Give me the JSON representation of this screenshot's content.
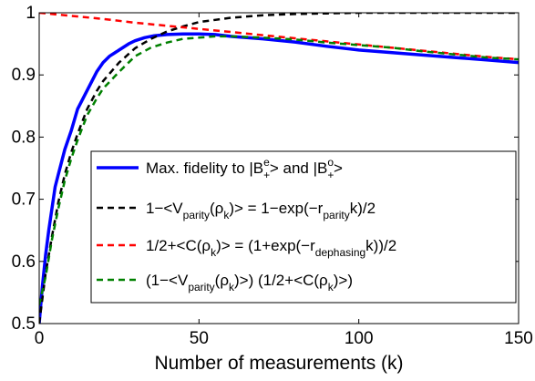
{
  "chart_data": {
    "type": "line",
    "xlabel": "Number of measurements (k)",
    "ylabel": "",
    "xlim": [
      0,
      150
    ],
    "ylim": [
      0.5,
      1
    ],
    "xticks": [
      "0",
      "50",
      "100",
      "150"
    ],
    "yticks": [
      "0.5",
      "0.6",
      "0.7",
      "0.8",
      "0.9",
      "1"
    ],
    "grid": false,
    "legend_position": "lower-right",
    "series": [
      {
        "name": "Max. fidelity to |B+e> and |B+o>",
        "color": "#0000ff",
        "style": "solid",
        "x": [
          0,
          1,
          2,
          3,
          4,
          5,
          6,
          8,
          10,
          12,
          14,
          16,
          18,
          20,
          22,
          25,
          28,
          30,
          33,
          36,
          40,
          45,
          50,
          55,
          60,
          70,
          80,
          90,
          100,
          110,
          120,
          130,
          140,
          150
        ],
        "y": [
          0.5,
          0.56,
          0.61,
          0.65,
          0.685,
          0.72,
          0.74,
          0.78,
          0.81,
          0.845,
          0.865,
          0.885,
          0.905,
          0.92,
          0.93,
          0.94,
          0.95,
          0.955,
          0.96,
          0.963,
          0.965,
          0.966,
          0.966,
          0.965,
          0.962,
          0.958,
          0.953,
          0.946,
          0.94,
          0.936,
          0.932,
          0.928,
          0.924,
          0.92
        ]
      },
      {
        "name": "1−<Vparity(ρk)> = 1−exp(−rparityk)/2",
        "color": "#000000",
        "style": "dashed",
        "x": [
          0,
          2,
          4,
          6,
          8,
          10,
          12,
          15,
          18,
          20,
          25,
          30,
          35,
          40,
          45,
          50,
          60,
          70,
          80,
          90,
          100,
          110,
          120,
          130,
          140,
          150
        ],
        "y": [
          0.5,
          0.58,
          0.64,
          0.695,
          0.74,
          0.775,
          0.805,
          0.845,
          0.874,
          0.89,
          0.92,
          0.943,
          0.958,
          0.97,
          0.978,
          0.985,
          0.992,
          0.996,
          0.998,
          0.999,
          1.0,
          1.0,
          1.0,
          1.0,
          1.0,
          1.0
        ]
      },
      {
        "name": "1/2+<C(ρk)> = (1+exp(−rdephasingk))/2",
        "color": "#ff0000",
        "style": "dashed",
        "x": [
          0,
          10,
          20,
          30,
          40,
          50,
          60,
          70,
          80,
          90,
          100,
          110,
          120,
          130,
          140,
          150
        ],
        "y": [
          1.0,
          0.995,
          0.99,
          0.984,
          0.979,
          0.974,
          0.969,
          0.964,
          0.959,
          0.954,
          0.949,
          0.944,
          0.939,
          0.934,
          0.929,
          0.925
        ]
      },
      {
        "name": "(1−<Vparity(ρk)>) (1/2+<C(ρk)>)",
        "color": "#008000",
        "style": "dashed",
        "x": [
          0,
          2,
          4,
          6,
          8,
          10,
          12,
          15,
          18,
          20,
          25,
          30,
          35,
          40,
          45,
          50,
          55,
          60,
          70,
          80,
          90,
          100,
          110,
          120,
          130,
          140,
          150
        ],
        "y": [
          0.53,
          0.575,
          0.635,
          0.685,
          0.73,
          0.765,
          0.795,
          0.835,
          0.862,
          0.878,
          0.905,
          0.93,
          0.944,
          0.952,
          0.958,
          0.96,
          0.962,
          0.962,
          0.96,
          0.957,
          0.952,
          0.948,
          0.944,
          0.938,
          0.933,
          0.928,
          0.925
        ]
      }
    ],
    "legend": [
      {
        "parts": [
          [
            "Max. fidelity to |B",
            ""
          ],
          [
            "+",
            "sub"
          ],
          [
            "e",
            "sup"
          ],
          [
            "> and |B",
            ""
          ],
          [
            "+",
            "sub"
          ],
          [
            "o",
            "sup"
          ],
          [
            ">",
            ""
          ]
        ]
      },
      {
        "parts": [
          [
            "1−<V",
            ""
          ],
          [
            "parity",
            "sub"
          ],
          [
            "(ρ",
            ""
          ],
          [
            "k",
            "sub"
          ],
          [
            ")> = 1−exp(−r",
            ""
          ],
          [
            "parity",
            "sub"
          ],
          [
            "k)/2",
            ""
          ]
        ]
      },
      {
        "parts": [
          [
            "1/2+<C(ρ",
            ""
          ],
          [
            "k",
            "sub"
          ],
          [
            ")> = (1+exp(−r",
            ""
          ],
          [
            "dephasing",
            "sub"
          ],
          [
            "k))/2",
            ""
          ]
        ]
      },
      {
        "parts": [
          [
            "(1−<V",
            ""
          ],
          [
            "parity",
            "sub"
          ],
          [
            "(ρ",
            ""
          ],
          [
            "k",
            "sub"
          ],
          [
            ")>) (1/2+<C(ρ",
            ""
          ],
          [
            "k",
            "sub"
          ],
          [
            ")>)",
            ""
          ]
        ]
      }
    ]
  }
}
